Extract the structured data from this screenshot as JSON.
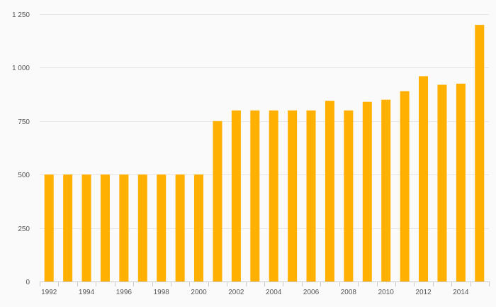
{
  "chart_data": {
    "type": "bar",
    "title": "",
    "xlabel": "",
    "ylabel": "",
    "categories": [
      "1992",
      "1993",
      "1994",
      "1995",
      "1996",
      "1997",
      "1998",
      "1999",
      "2000",
      "2001",
      "2002",
      "2003",
      "2004",
      "2005",
      "2006",
      "2007",
      "2008",
      "2009",
      "2010",
      "2011",
      "2012",
      "2013",
      "2014",
      "2015"
    ],
    "values": [
      500,
      500,
      500,
      500,
      500,
      500,
      500,
      500,
      500,
      750,
      800,
      800,
      800,
      800,
      800,
      845,
      800,
      840,
      850,
      890,
      960,
      920,
      925,
      1200
    ],
    "ylim": [
      0,
      1250
    ],
    "y_ticks": [
      {
        "value": 0,
        "label": "0"
      },
      {
        "value": 250,
        "label": "250"
      },
      {
        "value": 500,
        "label": "500"
      },
      {
        "value": 750,
        "label": "750"
      },
      {
        "value": 1000,
        "label": "1 000"
      },
      {
        "value": 1250,
        "label": "1 250"
      }
    ],
    "x_tick_labels": [
      "1992",
      "",
      "1994",
      "",
      "1996",
      "",
      "1998",
      "",
      "2000",
      "",
      "2002",
      "",
      "2004",
      "",
      "2006",
      "",
      "2008",
      "",
      "2010",
      "",
      "2012",
      "",
      "2014",
      ""
    ],
    "grid": true,
    "legend": "none",
    "bar_color": "#ffb000",
    "grid_color": "#e6e6e6",
    "background_color": "#fafafa"
  }
}
